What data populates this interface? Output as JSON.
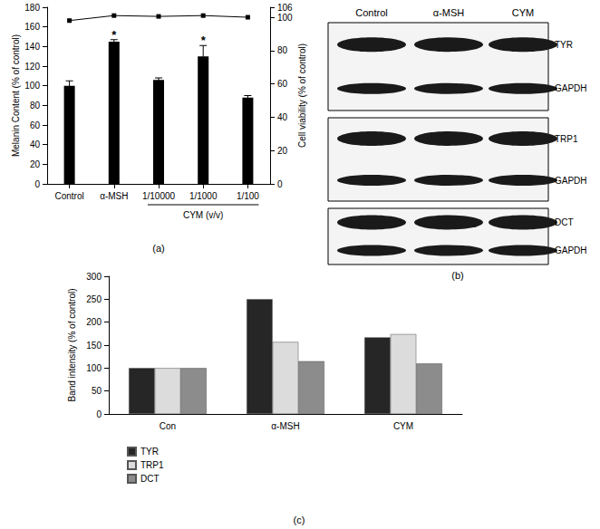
{
  "chart_data": [
    {
      "type": "bar",
      "panel": "(a)",
      "categories": [
        "Control",
        "α-MSH",
        "1/10000",
        "1/1000",
        "1/100"
      ],
      "group_label": {
        "text": "CYM (v/v)",
        "from": "1/10000",
        "to": "1/100"
      },
      "ylabel": "Melanin Content (% of control)",
      "ylim": [
        0,
        180
      ],
      "yticks": [
        0,
        20,
        40,
        60,
        80,
        100,
        120,
        140,
        160,
        180
      ],
      "y2label": "Cell viability (% of control)",
      "y2lim": [
        0,
        106
      ],
      "y2ticks": [
        0,
        20,
        40,
        60,
        80,
        100
      ],
      "grid": false,
      "series": [
        {
          "type": "bar",
          "color": "#000000",
          "values": [
            100,
            145,
            106,
            130,
            88
          ],
          "errors": [
            5,
            2,
            2,
            11,
            2
          ]
        },
        {
          "type": "line",
          "axis": "y2",
          "color": "#000000",
          "marker": "square",
          "values": [
            98,
            101,
            100.5,
            101,
            100
          ]
        }
      ],
      "annotations": [
        {
          "category": "α-MSH",
          "text": "*"
        },
        {
          "category": "1/1000",
          "text": "*"
        }
      ]
    },
    {
      "type": "blot",
      "panel": "(b)",
      "lanes": [
        "Control",
        "α-MSH",
        "CYM"
      ],
      "blots": [
        {
          "bands": [
            "TYR",
            "GAPDH"
          ]
        },
        {
          "bands": [
            "TRP1",
            "GAPDH"
          ]
        },
        {
          "bands": [
            "DCT",
            "GAPDH"
          ]
        }
      ]
    },
    {
      "type": "bar",
      "panel": "(c)",
      "categories": [
        "Con",
        "α-MSH",
        "CYM"
      ],
      "ylabel": "Band intensity (% of control)",
      "ylim": [
        0,
        300
      ],
      "yticks": [
        0,
        50,
        100,
        150,
        200,
        250,
        300
      ],
      "grid": false,
      "legend": "bottom",
      "series": [
        {
          "name": "TYR",
          "color": "#262626",
          "values": [
            100,
            250,
            167
          ]
        },
        {
          "name": "TRP1",
          "color": "#dcdcdc",
          "values": [
            100,
            157,
            174
          ]
        },
        {
          "name": "DCT",
          "color": "#8c8c8c",
          "values": [
            100,
            115,
            110
          ]
        }
      ]
    }
  ]
}
